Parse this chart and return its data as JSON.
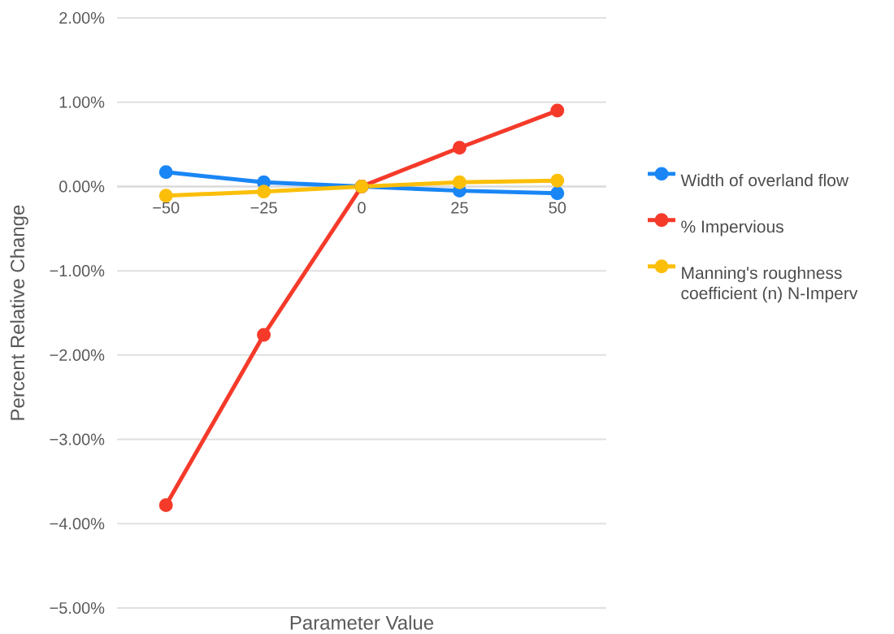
{
  "chart_data": {
    "type": "line",
    "xlabel": "Parameter Value",
    "ylabel": "Percent Relative Change",
    "x": [
      -50,
      -25,
      0,
      25,
      50
    ],
    "series": [
      {
        "name": "Width of overland flow",
        "color": "#1a86f5",
        "values": [
          0.17,
          0.05,
          0,
          -0.05,
          -0.08
        ]
      },
      {
        "name": "% Impervious",
        "color": "#f53a2a",
        "values": [
          -3.78,
          -1.76,
          0,
          0.46,
          0.9
        ]
      },
      {
        "name": "Manning's roughness coefficient (n) N-Imperv",
        "color": "#fbbf0a",
        "values": [
          -0.11,
          -0.06,
          0,
          0.05,
          0.07
        ]
      }
    ],
    "xlim": [
      -62.5,
      62.5
    ],
    "xticks": [
      {
        "value": -50,
        "label": "−50"
      },
      {
        "value": -25,
        "label": "−25"
      },
      0,
      25,
      50
    ],
    "ylim": [
      -5,
      2
    ],
    "yticks": [
      {
        "value": -5,
        "label": "−5.00%"
      },
      {
        "value": -4,
        "label": "−4.00%"
      },
      {
        "value": -3,
        "label": "−3.00%"
      },
      {
        "value": -2,
        "label": "−2.00%"
      },
      {
        "value": -1,
        "label": "−1.00%"
      },
      {
        "value": 0,
        "label": "0.00%"
      },
      {
        "value": 1,
        "label": "1.00%"
      },
      {
        "value": 2,
        "label": "2.00%"
      }
    ],
    "grid": "y",
    "legend": "right",
    "marker": "circle",
    "line_style": "solid"
  }
}
